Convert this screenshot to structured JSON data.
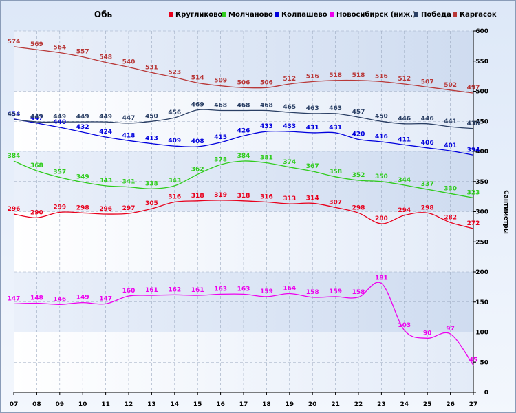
{
  "chart_data": {
    "type": "line",
    "title": "Обь",
    "ylabel": "Сантиметры",
    "xlabel": "",
    "x": [
      "07",
      "08",
      "09",
      "10",
      "11",
      "12",
      "13",
      "14",
      "15",
      "16",
      "17",
      "18",
      "19",
      "20",
      "21",
      "22",
      "23",
      "24",
      "25",
      "26",
      "27"
    ],
    "yticks": [
      0,
      50,
      100,
      150,
      200,
      250,
      300,
      350,
      400,
      450,
      500,
      550,
      600
    ],
    "ylim": [
      0,
      600
    ],
    "grid": true,
    "legend_position": "top",
    "series": [
      {
        "name": "Кругликово",
        "color": "#e8001c",
        "values": [
          296,
          290,
          299,
          298,
          296,
          297,
          305,
          316,
          318,
          319,
          318,
          316,
          313,
          314,
          307,
          298,
          280,
          294,
          298,
          282,
          272
        ]
      },
      {
        "name": "Молчаново",
        "color": "#2fcc1c",
        "values": [
          384,
          368,
          357,
          349,
          343,
          341,
          338,
          343,
          362,
          378,
          384,
          381,
          374,
          367,
          358,
          352,
          350,
          344,
          337,
          330,
          323
        ]
      },
      {
        "name": "Колпашево",
        "color": "#0000dd",
        "values": [
          454,
          447,
          440,
          432,
          424,
          418,
          413,
          409,
          408,
          415,
          426,
          433,
          433,
          431,
          431,
          420,
          416,
          411,
          406,
          401,
          394
        ]
      },
      {
        "name": "Новосибирск (ниж.)",
        "color": "#ee00ee",
        "values": [
          147,
          148,
          146,
          149,
          147,
          160,
          161,
          162,
          161,
          163,
          163,
          159,
          164,
          158,
          159,
          158,
          181,
          103,
          90,
          97,
          45
        ]
      },
      {
        "name": "Победа",
        "color": "#2a3f64",
        "values": [
          453,
          449,
          449,
          449,
          449,
          447,
          450,
          456,
          469,
          468,
          468,
          468,
          465,
          463,
          463,
          457,
          450,
          446,
          446,
          441,
          438
        ]
      },
      {
        "name": "Каргасок",
        "color": "#b83838",
        "values": [
          574,
          569,
          564,
          557,
          548,
          540,
          531,
          523,
          514,
          509,
          506,
          506,
          512,
          516,
          518,
          518,
          516,
          512,
          507,
          502,
          497
        ]
      }
    ]
  }
}
